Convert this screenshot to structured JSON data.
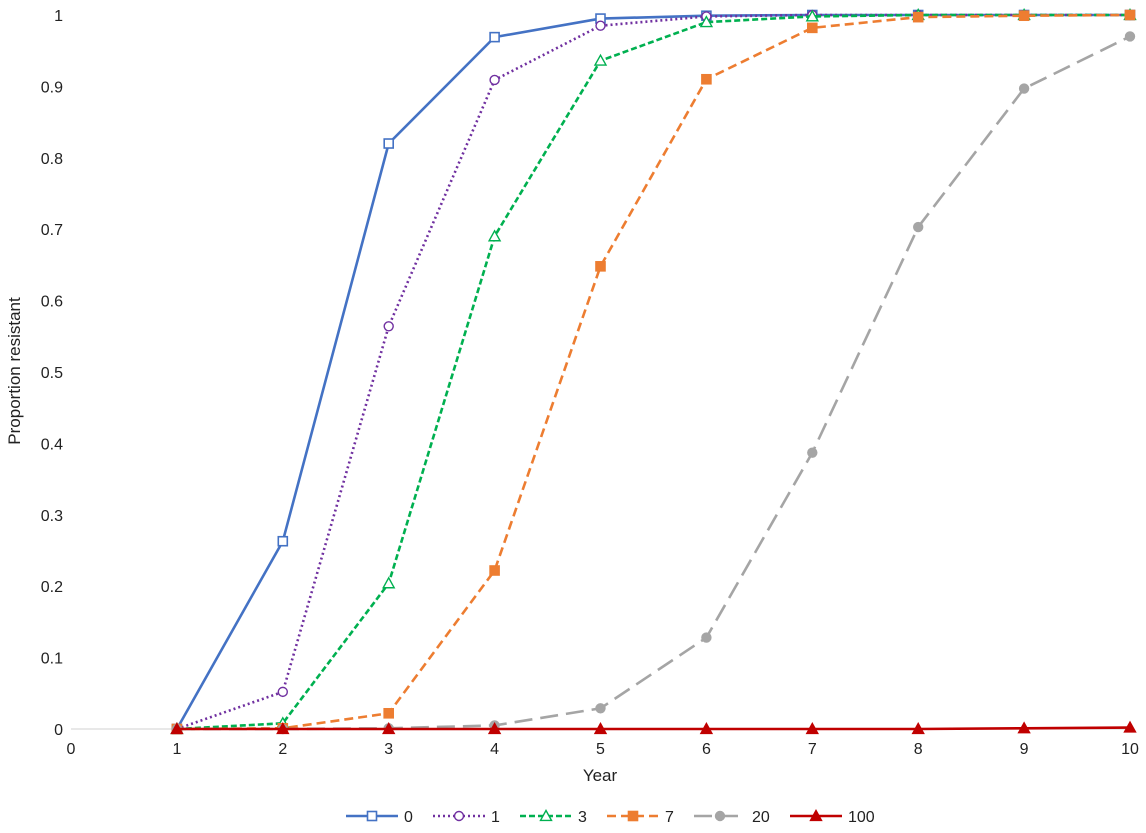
{
  "chart_data": {
    "type": "line",
    "title": "",
    "xlabel": "Year",
    "ylabel": "Proportion resistant",
    "xlim": [
      0,
      10
    ],
    "ylim": [
      0,
      1
    ],
    "x_ticks": [
      "0",
      "1",
      "2",
      "3",
      "4",
      "5",
      "6",
      "7",
      "8",
      "9",
      "10"
    ],
    "y_ticks": [
      "0",
      "0.1",
      "0.2",
      "0.3",
      "0.4",
      "0.5",
      "0.6",
      "0.7",
      "0.8",
      "0.9",
      "1"
    ],
    "grid": false,
    "legend": "bottom",
    "x": [
      1,
      2,
      3,
      4,
      5,
      6,
      7,
      8,
      9,
      10
    ],
    "series": [
      {
        "name": "0",
        "color": "#4472c4",
        "line": "solid",
        "marker": "square-open",
        "values": [
          0,
          0.263,
          0.82,
          0.969,
          0.995,
          0.999,
          1.0,
          1.0,
          1.0,
          1.0
        ]
      },
      {
        "name": "1",
        "color": "#7030a0",
        "line": "dotted",
        "marker": "circle-open",
        "values": [
          0,
          0.052,
          0.564,
          0.909,
          0.985,
          0.998,
          1.0,
          1.0,
          1.0,
          1.0
        ]
      },
      {
        "name": "3",
        "color": "#00b050",
        "line": "dashed-short",
        "marker": "triangle-open",
        "values": [
          0,
          0.008,
          0.204,
          0.69,
          0.936,
          0.99,
          0.998,
          1.0,
          1.0,
          1.0
        ]
      },
      {
        "name": "7",
        "color": "#ed7d31",
        "line": "dashed",
        "marker": "square-filled",
        "values": [
          0,
          0.001,
          0.022,
          0.222,
          0.648,
          0.91,
          0.982,
          0.997,
          0.999,
          1.0
        ]
      },
      {
        "name": "20",
        "color": "#a5a5a5",
        "line": "dashed-long",
        "marker": "circle-filled",
        "values": [
          0,
          0,
          0.001,
          0.005,
          0.029,
          0.128,
          0.387,
          0.703,
          0.897,
          0.97
        ]
      },
      {
        "name": "100",
        "color": "#c00000",
        "line": "solid",
        "marker": "triangle-filled",
        "values": [
          0,
          0,
          0,
          0,
          0,
          0,
          0,
          0,
          0.001,
          0.002
        ]
      }
    ]
  }
}
